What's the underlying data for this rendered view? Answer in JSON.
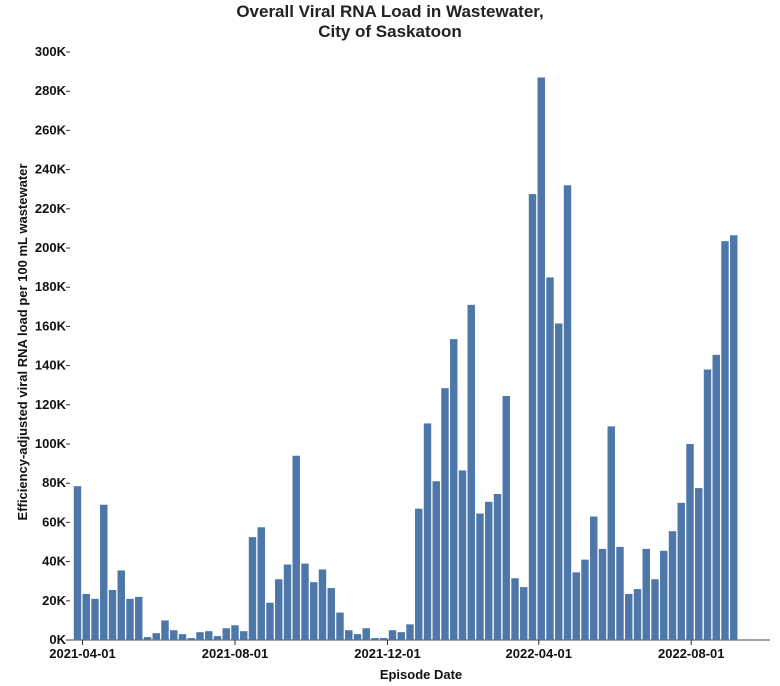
{
  "chart_data": {
    "type": "bar",
    "title": [
      "Overall Viral RNA Load in Wastewater,",
      "City of Saskatoon"
    ],
    "xlabel": "Episode Date",
    "ylabel": "Efficiency-adjusted viral RNA load per 100 mL wastewater",
    "bar_color": "#4e77a9",
    "xlim": [
      "2021-03-22",
      "2022-10-03"
    ],
    "ylim": [
      0,
      300000
    ],
    "x_ticks": [
      {
        "value": "2021-04-01",
        "label": "2021-04-01"
      },
      {
        "value": "2021-08-01",
        "label": "2021-08-01"
      },
      {
        "value": "2021-12-01",
        "label": "2021-12-01"
      },
      {
        "value": "2022-04-01",
        "label": "2022-04-01"
      },
      {
        "value": "2022-08-01",
        "label": "2022-08-01"
      }
    ],
    "y_ticks": [
      {
        "value": 0,
        "label": "0K"
      },
      {
        "value": 20000,
        "label": "20K"
      },
      {
        "value": 40000,
        "label": "40K"
      },
      {
        "value": 60000,
        "label": "60K"
      },
      {
        "value": 80000,
        "label": "80K"
      },
      {
        "value": 100000,
        "label": "100K"
      },
      {
        "value": 120000,
        "label": "120K"
      },
      {
        "value": 140000,
        "label": "140K"
      },
      {
        "value": 160000,
        "label": "160K"
      },
      {
        "value": 180000,
        "label": "180K"
      },
      {
        "value": 200000,
        "label": "200K"
      },
      {
        "value": 220000,
        "label": "220K"
      },
      {
        "value": 240000,
        "label": "240K"
      },
      {
        "value": 260000,
        "label": "260K"
      },
      {
        "value": 280000,
        "label": "280K"
      },
      {
        "value": 300000,
        "label": "300K"
      }
    ],
    "x": [
      "2021-03-28",
      "2021-04-04",
      "2021-04-11",
      "2021-04-18",
      "2021-04-25",
      "2021-05-02",
      "2021-05-09",
      "2021-05-16",
      "2021-05-23",
      "2021-05-30",
      "2021-06-06",
      "2021-06-13",
      "2021-06-20",
      "2021-06-27",
      "2021-07-04",
      "2021-07-11",
      "2021-07-18",
      "2021-07-25",
      "2021-08-01",
      "2021-08-08",
      "2021-08-15",
      "2021-08-22",
      "2021-08-29",
      "2021-09-05",
      "2021-09-12",
      "2021-09-19",
      "2021-09-26",
      "2021-10-03",
      "2021-10-10",
      "2021-10-17",
      "2021-10-24",
      "2021-10-31",
      "2021-11-07",
      "2021-11-14",
      "2021-11-21",
      "2021-11-28",
      "2021-12-05",
      "2021-12-12",
      "2021-12-19",
      "2021-12-26",
      "2022-01-02",
      "2022-01-09",
      "2022-01-16",
      "2022-01-23",
      "2022-01-30",
      "2022-02-06",
      "2022-02-13",
      "2022-02-20",
      "2022-02-27",
      "2022-03-06",
      "2022-03-13",
      "2022-03-20",
      "2022-03-27",
      "2022-04-03",
      "2022-04-10",
      "2022-04-17",
      "2022-04-24",
      "2022-05-01",
      "2022-05-08",
      "2022-05-15",
      "2022-05-22",
      "2022-05-29",
      "2022-06-05",
      "2022-06-12",
      "2022-06-19",
      "2022-06-26",
      "2022-07-03",
      "2022-07-10",
      "2022-07-17",
      "2022-07-24",
      "2022-07-31",
      "2022-08-07",
      "2022-08-14",
      "2022-08-21",
      "2022-08-28",
      "2022-09-04",
      "2022-09-11"
    ],
    "values": [
      78500,
      23500,
      21000,
      69000,
      25500,
      35500,
      21000,
      22000,
      1500,
      3500,
      10000,
      5000,
      3000,
      1000,
      4000,
      4500,
      2000,
      6000,
      7500,
      4500,
      52500,
      57500,
      19000,
      31000,
      38500,
      94000,
      39000,
      29500,
      36000,
      26500,
      14000,
      5000,
      3000,
      6000,
      1000,
      1000,
      5000,
      4000,
      8000,
      67000,
      110500,
      81000,
      128500,
      153500,
      86500,
      171000,
      64500,
      70500,
      74500,
      124500,
      31500,
      27000,
      227500,
      287000,
      185000,
      161500,
      232000,
      34500,
      41000,
      63000,
      46500,
      109000,
      47500,
      23500,
      26000,
      46500,
      31000,
      45500,
      55500,
      70000,
      100000,
      77500,
      138000,
      145500,
      203500,
      206500,
      0
    ]
  }
}
